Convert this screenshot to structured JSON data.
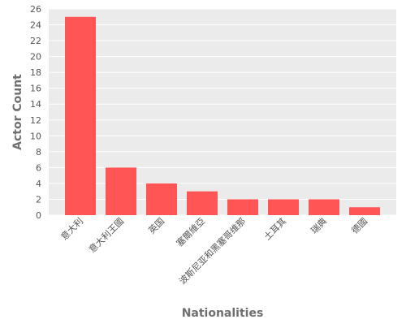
{
  "colors": {
    "panel": "#ebebeb",
    "grid": "#ffffff",
    "bar": "#ff5555",
    "tick_text": "#555555",
    "axis_title": "#6f6f6f"
  },
  "chart_data": {
    "type": "bar",
    "title": "",
    "xlabel": "Nationalities",
    "ylabel": "Actor Count",
    "categories": [
      "意大利",
      "意大利王國",
      "英国",
      "塞爾維亞",
      "波斯尼亚和黑塞哥维那",
      "土耳其",
      "瑞典",
      "德國"
    ],
    "values": [
      25,
      6,
      4,
      3,
      2,
      2,
      2,
      1
    ],
    "ylim": [
      0,
      26
    ],
    "yticks": [
      0,
      2,
      4,
      6,
      8,
      10,
      12,
      14,
      16,
      18,
      20,
      22,
      24,
      26
    ],
    "grid": true,
    "legend": "none"
  }
}
